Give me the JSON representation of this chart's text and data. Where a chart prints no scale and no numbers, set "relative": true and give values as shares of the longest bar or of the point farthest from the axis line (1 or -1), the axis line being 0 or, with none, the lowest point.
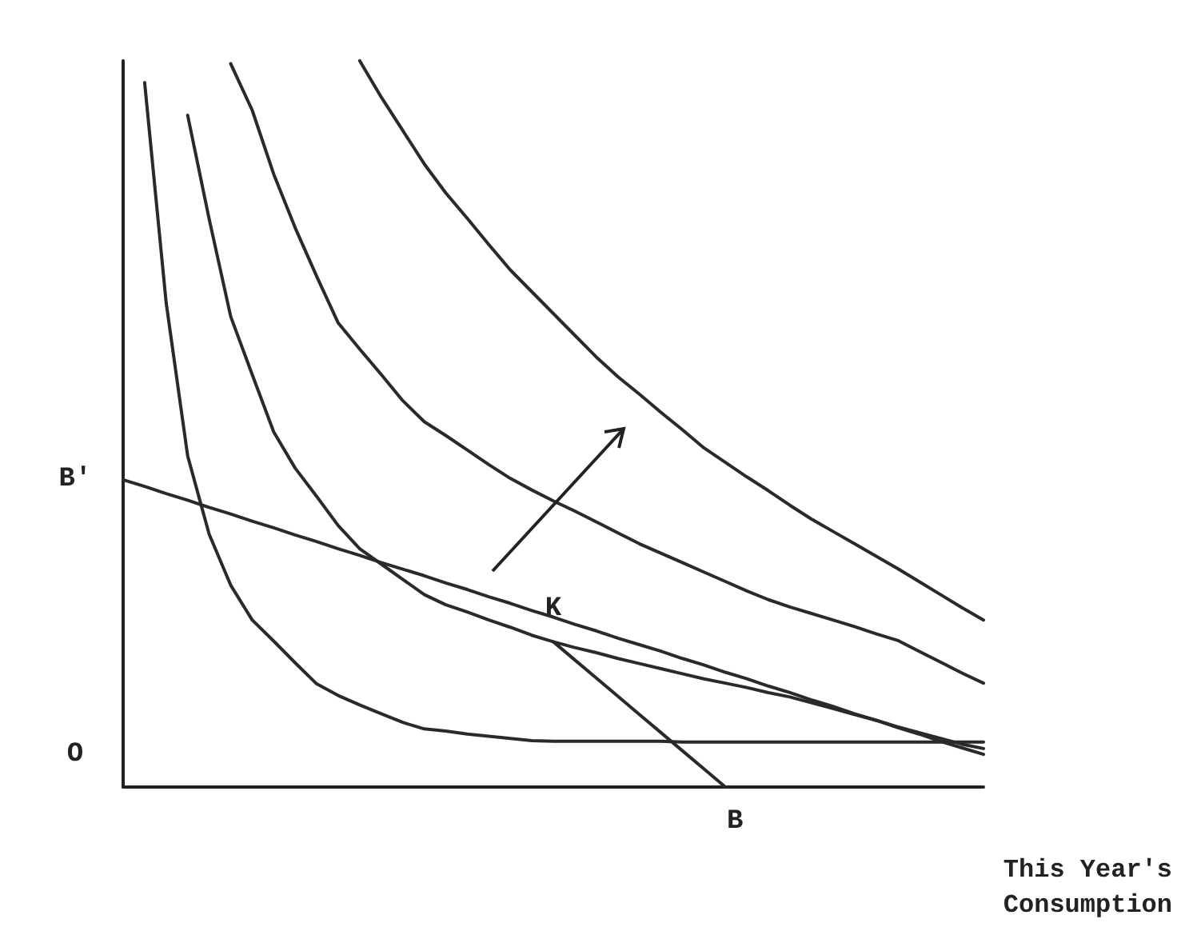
{
  "chart_data": {
    "type": "line",
    "relative": true,
    "xlabel": "This Year's\nConsumption",
    "marker": "none",
    "line_style": "solid",
    "grid": false,
    "categories": [
      null,
      null,
      null,
      null,
      null,
      null,
      null,
      null,
      null,
      null,
      null,
      null,
      null,
      null,
      null,
      null,
      null,
      null,
      null,
      null,
      null,
      null,
      null,
      null,
      null,
      null,
      null,
      null,
      null,
      null,
      null,
      null,
      null,
      null,
      null,
      null,
      null,
      null,
      null,
      null,
      null
    ],
    "series": [
      {
        "color": "#2a2a2a",
        "values": [
          null,
          0.97,
          0.667,
          0.456,
          0.348,
          0.278,
          0.23,
          0.201,
          0.171,
          0.142,
          0.126,
          0.113,
          0.101,
          0.089,
          0.08,
          0.077,
          0.073,
          0.07,
          0.067,
          0.064,
          0.063,
          0.063,
          0.063,
          0.063,
          0.063,
          0.063,
          0.062,
          0.062,
          0.062,
          0.062,
          0.062,
          0.062,
          0.062,
          0.062,
          0.062,
          0.062,
          0.062,
          0.062,
          0.062,
          0.062,
          0.062
        ]
      },
      {
        "color": "#2a2a2a",
        "values": [
          null,
          null,
          null,
          0.925,
          0.782,
          0.648,
          0.568,
          0.489,
          0.439,
          0.4,
          0.36,
          0.328,
          0.307,
          0.286,
          0.265,
          0.251,
          0.241,
          0.23,
          0.22,
          0.209,
          0.2,
          0.192,
          0.185,
          0.177,
          0.17,
          0.163,
          0.156,
          0.149,
          0.143,
          0.137,
          0.13,
          0.124,
          0.116,
          0.108,
          0.1,
          0.092,
          0.083,
          0.075,
          0.067,
          0.059,
          0.053
        ]
      },
      {
        "color": "#2a2a2a",
        "values": [
          null,
          null,
          null,
          null,
          null,
          0.996,
          0.932,
          0.844,
          0.77,
          0.703,
          0.639,
          0.603,
          0.568,
          0.532,
          0.503,
          0.484,
          0.464,
          0.444,
          0.425,
          0.409,
          0.394,
          0.38,
          0.365,
          0.35,
          0.335,
          0.322,
          0.309,
          0.296,
          0.283,
          0.27,
          0.258,
          0.248,
          0.239,
          0.23,
          0.221,
          0.211,
          0.202,
          0.187,
          0.172,
          0.157,
          0.143
        ]
      },
      {
        "color": "#2a2a2a",
        "values": [
          null,
          null,
          null,
          null,
          null,
          null,
          null,
          null,
          null,
          null,
          null,
          1.0,
          0.95,
          0.904,
          0.858,
          0.818,
          0.783,
          0.747,
          0.712,
          0.682,
          0.652,
          0.622,
          0.592,
          0.565,
          0.541,
          0.516,
          0.492,
          0.467,
          0.447,
          0.427,
          0.408,
          0.388,
          0.369,
          0.352,
          0.335,
          0.318,
          0.301,
          0.283,
          0.265,
          0.247,
          0.23
        ]
      },
      {
        "color": "#2a2a2a",
        "values": [
          0.423,
          0.414,
          0.404,
          0.395,
          0.385,
          0.376,
          0.366,
          0.357,
          0.347,
          0.338,
          0.328,
          0.319,
          0.309,
          0.3,
          0.291,
          0.281,
          0.272,
          0.262,
          0.253,
          0.243,
          0.234,
          0.224,
          0.215,
          0.205,
          0.196,
          0.187,
          0.177,
          0.168,
          0.158,
          0.149,
          0.139,
          0.13,
          0.12,
          0.111,
          0.101,
          0.092,
          0.082,
          0.073,
          0.063,
          0.054,
          0.045
        ]
      },
      {
        "color": "#2a2a2a",
        "values": [
          null,
          null,
          null,
          null,
          null,
          null,
          null,
          null,
          null,
          null,
          null,
          null,
          null,
          null,
          null,
          null,
          null,
          null,
          null,
          null,
          0.2,
          0.175,
          0.15,
          0.125,
          0.1,
          0.075,
          0.05,
          0.025,
          0,
          null,
          null,
          null,
          null,
          null,
          null,
          null,
          null,
          null,
          null,
          null,
          null
        ]
      }
    ],
    "annotations": [
      "B'",
      "O",
      "K",
      "B"
    ]
  }
}
